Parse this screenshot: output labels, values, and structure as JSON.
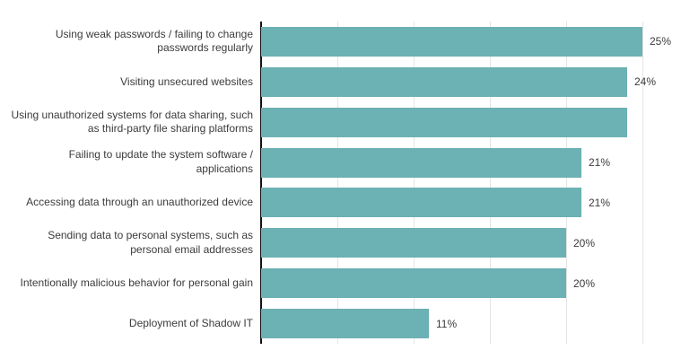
{
  "chart_data": {
    "type": "bar",
    "orientation": "horizontal",
    "title": "",
    "xlabel": "",
    "ylabel": "",
    "categories": [
      "Using weak passwords / failing to change passwords regularly",
      "Visiting unsecured websites",
      "Using unauthorized systems for data sharing, such as third-party file sharing platforms",
      "Failing to update the system software / applications",
      "Accessing data through an unauthorized device",
      "Sending data to personal systems, such as personal email addresses",
      "Intentionally malicious behavior for personal gain",
      "Deployment of Shadow IT"
    ],
    "values": [
      25,
      24,
      24,
      21,
      21,
      20,
      20,
      11
    ],
    "display_labels": [
      "25%",
      "24%",
      "",
      "21%",
      "21%",
      "20%",
      "20%",
      "11%"
    ],
    "xlim": [
      0,
      25
    ],
    "gridline_interval": 5,
    "grid": true,
    "legend": false,
    "bar_color": "#6cb1b3",
    "gridline_color": "#e4e4e4",
    "axis_color": "#111111",
    "text_color": "#3b3b3b"
  }
}
